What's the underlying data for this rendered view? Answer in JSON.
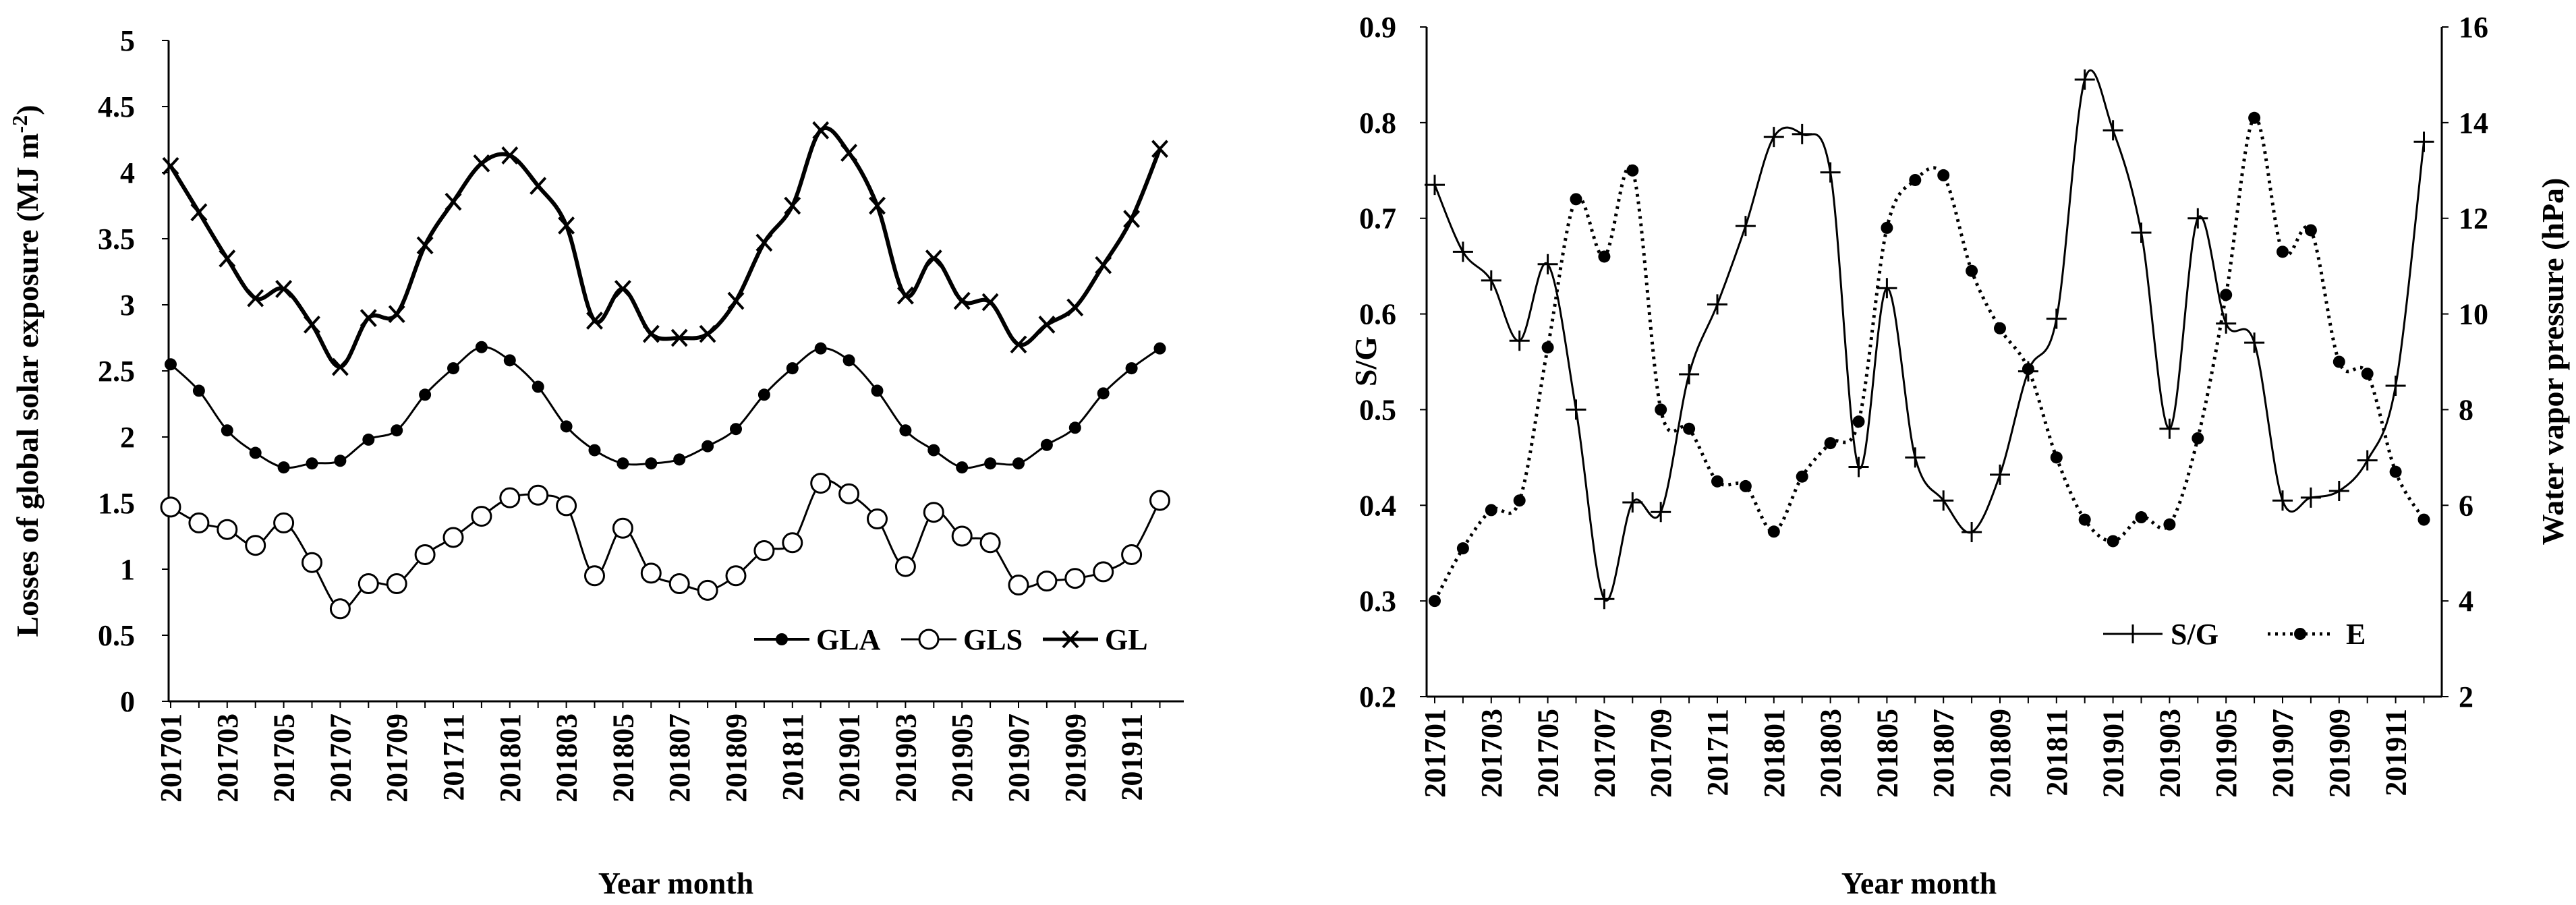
{
  "chart_data": [
    {
      "type": "line",
      "id": "left",
      "xlabel": "Year month",
      "ylabel": "Losses of global solar exposure (MJ m-2)",
      "ylabel_base": "Losses of global solar exposure (MJ m",
      "ylabel_sup": "-2",
      "ylabel_end": ")",
      "ylim": [
        0,
        5
      ],
      "yticks": [
        "0",
        "0.5",
        "1",
        "1.5",
        "2",
        "2.5",
        "3",
        "3.5",
        "4",
        "4.5",
        "5"
      ],
      "yvals": [
        0,
        0.5,
        1,
        1.5,
        2,
        2.5,
        3,
        3.5,
        4,
        4.5,
        5
      ],
      "xtick_labels": [
        "201701",
        "201703",
        "201705",
        "201707",
        "201709",
        "201711",
        "201801",
        "201803",
        "201805",
        "201807",
        "201809",
        "201811",
        "201901",
        "201903",
        "201905",
        "201907",
        "201909",
        "201911"
      ],
      "legend_position": "bottom-right",
      "series": [
        {
          "name": "GLA",
          "marker": "filled-circle",
          "values": [
            2.55,
            2.35,
            2.05,
            1.88,
            1.77,
            1.8,
            1.82,
            1.98,
            2.05,
            2.32,
            2.52,
            2.68,
            2.58,
            2.38,
            2.08,
            1.9,
            1.8,
            1.8,
            1.83,
            1.93,
            2.06,
            2.32,
            2.52,
            2.67,
            2.58,
            2.35,
            2.05,
            1.9,
            1.77,
            1.8,
            1.8,
            1.94,
            2.07,
            2.33,
            2.52,
            2.67
          ]
        },
        {
          "name": "GLS",
          "marker": "open-circle",
          "values": [
            1.47,
            1.35,
            1.3,
            1.18,
            1.35,
            1.05,
            0.7,
            0.89,
            0.89,
            1.11,
            1.24,
            1.4,
            1.54,
            1.56,
            1.48,
            0.95,
            1.31,
            0.97,
            0.89,
            0.84,
            0.95,
            1.14,
            1.2,
            1.65,
            1.57,
            1.38,
            1.02,
            1.43,
            1.25,
            1.2,
            0.88,
            0.91,
            0.93,
            0.98,
            1.11,
            1.52
          ]
        },
        {
          "name": "GL",
          "marker": "x",
          "values": [
            4.05,
            3.7,
            3.35,
            3.05,
            3.12,
            2.85,
            2.53,
            2.9,
            2.93,
            3.45,
            3.78,
            4.07,
            4.13,
            3.9,
            3.6,
            2.88,
            3.12,
            2.78,
            2.75,
            2.78,
            3.03,
            3.47,
            3.75,
            4.32,
            4.15,
            3.75,
            3.07,
            3.35,
            3.03,
            3.02,
            2.7,
            2.85,
            2.98,
            3.3,
            3.65,
            4.18
          ]
        }
      ]
    },
    {
      "type": "line",
      "id": "right",
      "xlabel": "Year month",
      "ylabel": "S/G",
      "y2label": "Water vapor pressure (hPa)",
      "ylim": [
        0.2,
        0.9
      ],
      "y2lim": [
        2,
        16
      ],
      "yticks": [
        "0.2",
        "0.3",
        "0.4",
        "0.5",
        "0.6",
        "0.7",
        "0.8",
        "0.9"
      ],
      "yvals": [
        0.2,
        0.3,
        0.4,
        0.5,
        0.6,
        0.7,
        0.8,
        0.9
      ],
      "y2ticks": [
        "2",
        "4",
        "6",
        "8",
        "10",
        "12",
        "14",
        "16"
      ],
      "y2vals": [
        2,
        4,
        6,
        8,
        10,
        12,
        14,
        16
      ],
      "xtick_labels": [
        "201701",
        "201703",
        "201705",
        "201707",
        "201709",
        "201711",
        "201801",
        "201803",
        "201805",
        "201807",
        "201809",
        "201811",
        "201901",
        "201903",
        "201905",
        "201907",
        "201909",
        "201911"
      ],
      "legend_position": "bottom-right",
      "series": [
        {
          "name": "S/G",
          "axis": "left",
          "style": "solid",
          "marker": "plus",
          "values": [
            0.735,
            0.665,
            0.635,
            0.572,
            0.652,
            0.5,
            0.302,
            0.403,
            0.393,
            0.537,
            0.61,
            0.692,
            0.785,
            0.788,
            0.748,
            0.44,
            0.627,
            0.45,
            0.405,
            0.372,
            0.432,
            0.54,
            0.595,
            0.845,
            0.792,
            0.685,
            0.48,
            0.7,
            0.59,
            0.57,
            0.405,
            0.408,
            0.415,
            0.447,
            0.525,
            0.78
          ]
        },
        {
          "name": "E",
          "axis": "right",
          "style": "dotted",
          "marker": "filled-circle",
          "values": [
            4.0,
            5.1,
            5.9,
            6.1,
            9.3,
            12.4,
            11.2,
            13.0,
            8.0,
            7.6,
            6.5,
            6.4,
            5.45,
            6.6,
            7.3,
            7.75,
            11.8,
            12.8,
            12.9,
            10.9,
            9.7,
            8.85,
            7.0,
            5.7,
            5.25,
            5.75,
            5.6,
            7.4,
            10.4,
            14.1,
            11.3,
            11.75,
            9.0,
            8.75,
            6.7,
            5.7
          ]
        }
      ]
    }
  ]
}
